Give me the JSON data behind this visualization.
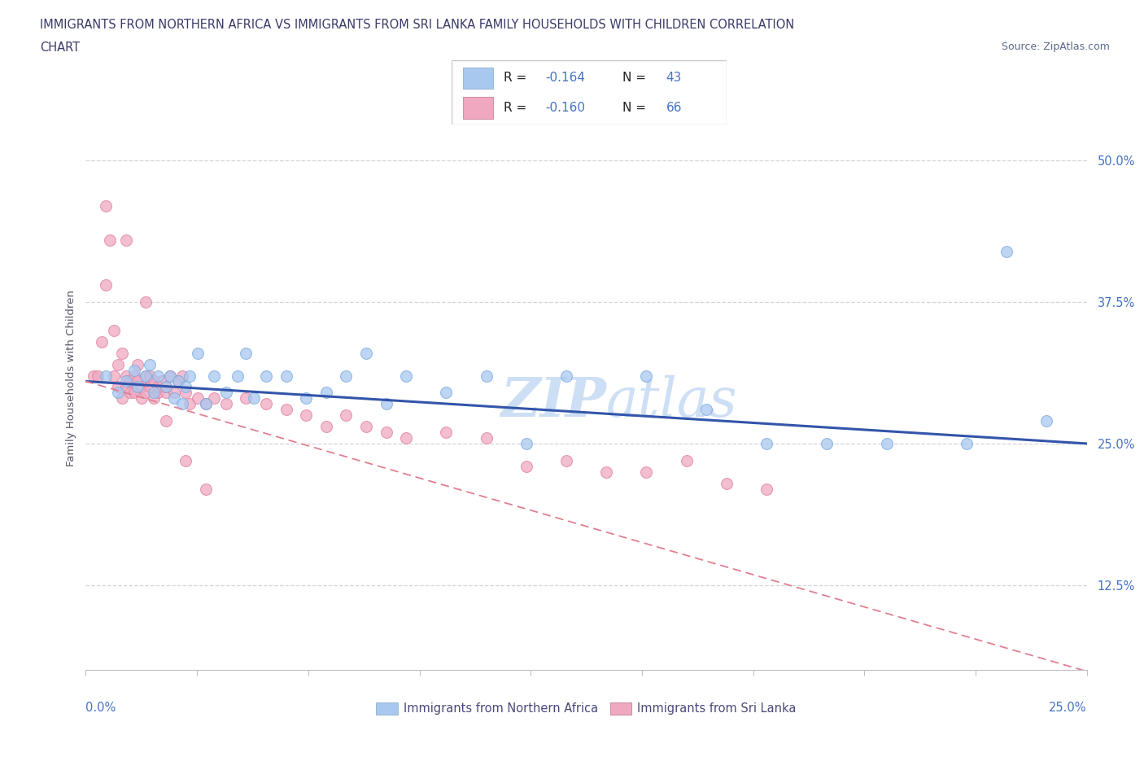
{
  "title_line1": "IMMIGRANTS FROM NORTHERN AFRICA VS IMMIGRANTS FROM SRI LANKA FAMILY HOUSEHOLDS WITH CHILDREN CORRELATION",
  "title_line2": "CHART",
  "source": "Source: ZipAtlas.com",
  "ylabel": "Family Households with Children",
  "ytick_values": [
    0.125,
    0.25,
    0.375,
    0.5
  ],
  "xlim": [
    0.0,
    0.25
  ],
  "ylim": [
    0.05,
    0.565
  ],
  "color_blue": "#a8c8f0",
  "color_pink": "#f0a8c0",
  "color_blue_line": "#3355aa",
  "color_pink_dashed": "#e08090",
  "watermark_color": "#cddff5",
  "northern_africa_x": [
    0.005,
    0.008,
    0.01,
    0.012,
    0.013,
    0.015,
    0.016,
    0.017,
    0.018,
    0.02,
    0.021,
    0.022,
    0.023,
    0.024,
    0.025,
    0.026,
    0.028,
    0.03,
    0.032,
    0.035,
    0.038,
    0.04,
    0.042,
    0.045,
    0.05,
    0.055,
    0.06,
    0.065,
    0.07,
    0.075,
    0.08,
    0.09,
    0.1,
    0.11,
    0.12,
    0.14,
    0.155,
    0.17,
    0.185,
    0.2,
    0.22,
    0.23,
    0.24
  ],
  "northern_africa_y": [
    0.31,
    0.295,
    0.305,
    0.315,
    0.3,
    0.31,
    0.32,
    0.295,
    0.31,
    0.3,
    0.31,
    0.29,
    0.305,
    0.285,
    0.3,
    0.31,
    0.33,
    0.285,
    0.31,
    0.295,
    0.31,
    0.33,
    0.29,
    0.31,
    0.31,
    0.29,
    0.295,
    0.31,
    0.33,
    0.285,
    0.31,
    0.295,
    0.31,
    0.25,
    0.31,
    0.31,
    0.28,
    0.25,
    0.25,
    0.25,
    0.25,
    0.42,
    0.27
  ],
  "sri_lanka_x": [
    0.002,
    0.003,
    0.004,
    0.005,
    0.006,
    0.007,
    0.007,
    0.008,
    0.008,
    0.009,
    0.009,
    0.01,
    0.01,
    0.011,
    0.011,
    0.012,
    0.012,
    0.013,
    0.013,
    0.014,
    0.014,
    0.015,
    0.015,
    0.016,
    0.016,
    0.017,
    0.017,
    0.018,
    0.018,
    0.019,
    0.02,
    0.02,
    0.021,
    0.022,
    0.023,
    0.024,
    0.025,
    0.026,
    0.028,
    0.03,
    0.032,
    0.035,
    0.04,
    0.045,
    0.05,
    0.055,
    0.06,
    0.065,
    0.07,
    0.075,
    0.08,
    0.09,
    0.1,
    0.11,
    0.12,
    0.13,
    0.14,
    0.15,
    0.16,
    0.17,
    0.005,
    0.01,
    0.015,
    0.02,
    0.025,
    0.03
  ],
  "sri_lanka_y": [
    0.31,
    0.31,
    0.34,
    0.39,
    0.43,
    0.35,
    0.31,
    0.32,
    0.3,
    0.33,
    0.29,
    0.3,
    0.31,
    0.295,
    0.305,
    0.31,
    0.295,
    0.305,
    0.32,
    0.29,
    0.3,
    0.31,
    0.295,
    0.3,
    0.31,
    0.29,
    0.305,
    0.295,
    0.3,
    0.305,
    0.295,
    0.3,
    0.31,
    0.295,
    0.305,
    0.31,
    0.295,
    0.285,
    0.29,
    0.285,
    0.29,
    0.285,
    0.29,
    0.285,
    0.28,
    0.275,
    0.265,
    0.275,
    0.265,
    0.26,
    0.255,
    0.26,
    0.255,
    0.23,
    0.235,
    0.225,
    0.225,
    0.235,
    0.215,
    0.21,
    0.46,
    0.43,
    0.375,
    0.27,
    0.235,
    0.21
  ],
  "fig_width": 14.06,
  "fig_height": 9.3,
  "dpi": 100
}
